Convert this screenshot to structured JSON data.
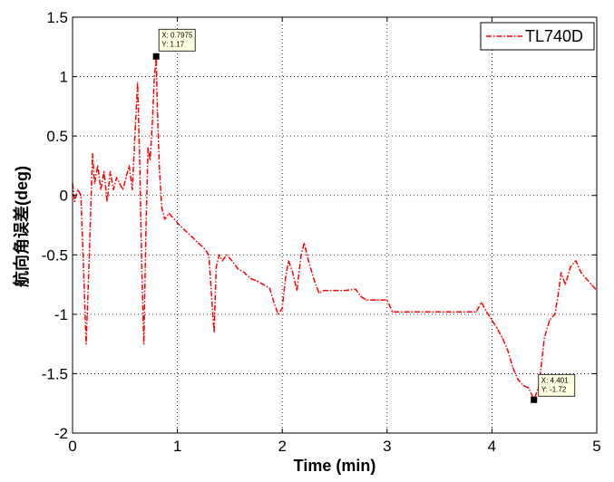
{
  "chart_data": {
    "type": "line",
    "title": "",
    "xlabel": "Time (min)",
    "ylabel": "航向角误差(deg)",
    "xlim": [
      0,
      5
    ],
    "ylim": [
      -2,
      1.5
    ],
    "x_ticks": [
      "0",
      "1",
      "2",
      "3",
      "4",
      "5"
    ],
    "y_ticks": [
      "1.5",
      "1",
      "0.5",
      "0",
      "-0.5",
      "-1",
      "-1.5",
      "-2"
    ],
    "grid": true,
    "grid_style": "dotted",
    "legend_position": "top-right",
    "series_color": "#ff0000",
    "series": [
      {
        "name": "TL740D",
        "x": [
          0.0,
          0.02,
          0.05,
          0.08,
          0.1,
          0.13,
          0.16,
          0.19,
          0.21,
          0.24,
          0.27,
          0.3,
          0.33,
          0.36,
          0.39,
          0.42,
          0.45,
          0.48,
          0.51,
          0.54,
          0.57,
          0.6,
          0.62,
          0.64,
          0.66,
          0.68,
          0.7,
          0.72,
          0.74,
          0.76,
          0.78,
          0.7975,
          0.81,
          0.83,
          0.85,
          0.88,
          0.92,
          0.97,
          1.02,
          1.08,
          1.14,
          1.2,
          1.26,
          1.3,
          1.33,
          1.35,
          1.37,
          1.4,
          1.43,
          1.47,
          1.52,
          1.58,
          1.64,
          1.7,
          1.76,
          1.82,
          1.88,
          1.92,
          1.96,
          2.0,
          2.03,
          2.06,
          2.1,
          2.14,
          2.18,
          2.21,
          2.25,
          2.3,
          2.35,
          2.4,
          2.5,
          2.6,
          2.7,
          2.75,
          2.8,
          2.9,
          3.0,
          3.05,
          3.1,
          3.3,
          3.5,
          3.7,
          3.85,
          3.9,
          3.95,
          4.0,
          4.05,
          4.1,
          4.15,
          4.2,
          4.25,
          4.3,
          4.35,
          4.401,
          4.45,
          4.5,
          4.55,
          4.6,
          4.63,
          4.66,
          4.7,
          4.75,
          4.8,
          4.85,
          4.9,
          4.95,
          5.0
        ],
        "y": [
          0.1,
          -0.05,
          0.05,
          0.0,
          -0.5,
          -1.25,
          -0.5,
          0.35,
          0.1,
          0.25,
          0.05,
          0.2,
          -0.05,
          0.2,
          0.05,
          0.15,
          0.1,
          0.05,
          0.15,
          0.25,
          0.05,
          0.6,
          0.95,
          0.3,
          -0.6,
          -1.25,
          -0.3,
          0.4,
          0.3,
          0.6,
          1.0,
          1.17,
          0.7,
          0.2,
          -0.1,
          -0.2,
          -0.15,
          -0.2,
          -0.25,
          -0.3,
          -0.35,
          -0.4,
          -0.45,
          -0.5,
          -0.9,
          -1.15,
          -0.6,
          -0.5,
          -0.55,
          -0.5,
          -0.55,
          -0.62,
          -0.65,
          -0.7,
          -0.72,
          -0.75,
          -0.78,
          -0.9,
          -1.0,
          -0.95,
          -0.7,
          -0.55,
          -0.65,
          -0.8,
          -0.5,
          -0.4,
          -0.55,
          -0.7,
          -0.82,
          -0.8,
          -0.8,
          -0.8,
          -0.79,
          -0.85,
          -0.88,
          -0.88,
          -0.88,
          -0.98,
          -0.98,
          -0.98,
          -0.98,
          -0.98,
          -0.98,
          -0.9,
          -0.98,
          -1.05,
          -1.12,
          -1.2,
          -1.3,
          -1.45,
          -1.55,
          -1.6,
          -1.62,
          -1.72,
          -1.6,
          -1.2,
          -1.05,
          -1.0,
          -0.85,
          -0.65,
          -0.75,
          -0.6,
          -0.55,
          -0.65,
          -0.7,
          -0.75,
          -0.8
        ]
      }
    ],
    "datatips": [
      {
        "x_label": "X: 0.7975",
        "y_label": "Y: 1.17",
        "x": 0.7975,
        "y": 1.17
      },
      {
        "x_label": "X: 4.401",
        "y_label": "Y: -1.72",
        "x": 4.401,
        "y": -1.72
      }
    ]
  }
}
